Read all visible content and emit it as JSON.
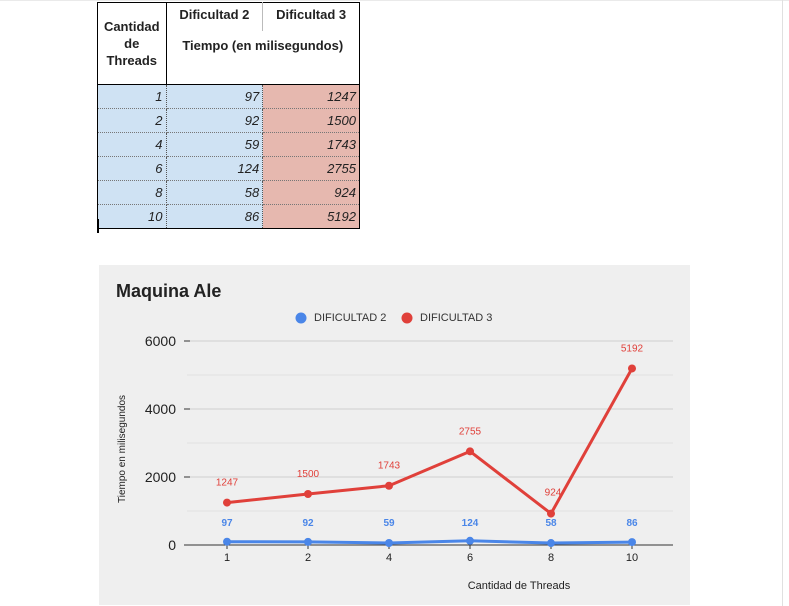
{
  "table": {
    "headers": {
      "threads": "Cantidad de Threads",
      "diff2": "Dificultad 2",
      "diff3": "Dificultad 3",
      "subheader": "Tiempo (en milisegundos)"
    },
    "rows": [
      {
        "threads": "1",
        "d2": "97",
        "d3": "1247"
      },
      {
        "threads": "2",
        "d2": "92",
        "d3": "1500"
      },
      {
        "threads": "4",
        "d2": "59",
        "d3": "1743"
      },
      {
        "threads": "6",
        "d2": "124",
        "d3": "2755"
      },
      {
        "threads": "8",
        "d2": "58",
        "d3": "924"
      },
      {
        "threads": "10",
        "d2": "86",
        "d3": "5192"
      }
    ]
  },
  "chart_data": {
    "type": "line",
    "title": "Maquina Ale",
    "xlabel": "Cantidad de Threads",
    "ylabel": "Tiempo en milisegundos",
    "categories": [
      "1",
      "2",
      "4",
      "6",
      "8",
      "10"
    ],
    "series": [
      {
        "name": "DIFICULTAD 2",
        "color": "#4a86e8",
        "values": [
          97,
          92,
          59,
          124,
          58,
          86
        ]
      },
      {
        "name": "DIFICULTAD 3",
        "color": "#e0403a",
        "values": [
          1247,
          1500,
          1743,
          2755,
          924,
          5192
        ]
      }
    ],
    "ylim": [
      0,
      6000
    ],
    "yticks": [
      0,
      2000,
      4000,
      6000
    ],
    "grid": true,
    "legend": "top",
    "data_labels": true
  }
}
